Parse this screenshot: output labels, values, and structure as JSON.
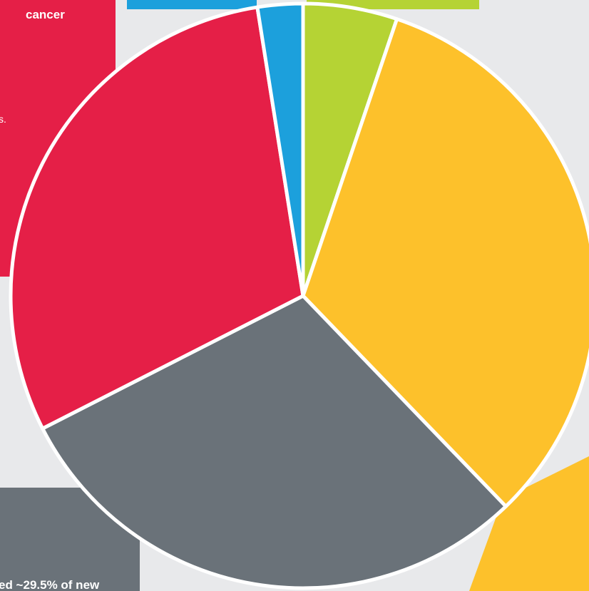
{
  "chart_data": {
    "type": "pie",
    "values": [
      5.2,
      32.6,
      29.7,
      30.0,
      2.5
    ],
    "colors": [
      "#b5d334",
      "#fdc12b",
      "#6a7279",
      "#e51f47",
      "#1ca0dc"
    ],
    "annotations": [
      "cancer",
      "s.",
      "ed ~29.5% of new"
    ]
  }
}
